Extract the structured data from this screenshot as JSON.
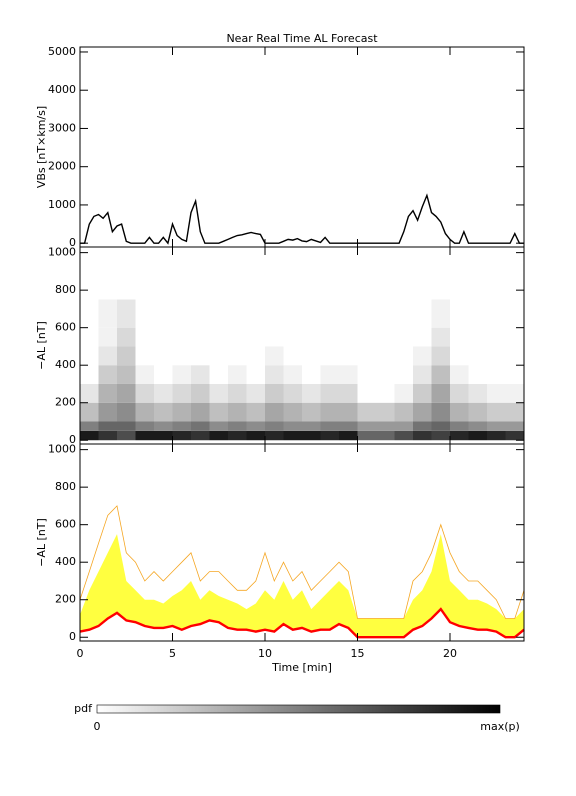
{
  "chart_data": [
    {
      "type": "line",
      "title": "Near Real Time AL Forecast",
      "ylabel": "VBs [nT×km/s]",
      "xlim": [
        0,
        24
      ],
      "ylim": [
        -100,
        5130
      ],
      "yticks": [
        0,
        1000,
        2000,
        3000,
        4000,
        5000
      ],
      "x": [
        0,
        0.25,
        0.5,
        0.75,
        1,
        1.25,
        1.5,
        1.75,
        2,
        2.25,
        2.5,
        2.75,
        3,
        3.25,
        3.5,
        3.75,
        4,
        4.25,
        4.5,
        4.75,
        5,
        5.25,
        5.5,
        5.75,
        6,
        6.25,
        6.5,
        6.75,
        7,
        7.25,
        7.5,
        7.75,
        8,
        8.25,
        8.5,
        8.75,
        9,
        9.25,
        9.5,
        9.75,
        10,
        10.25,
        10.5,
        10.75,
        11,
        11.25,
        11.5,
        11.75,
        12,
        12.25,
        12.5,
        12.75,
        13,
        13.25,
        13.5,
        13.75,
        14,
        14.25,
        14.5,
        14.75,
        15,
        15.25,
        15.5,
        15.75,
        16,
        16.25,
        16.5,
        16.75,
        17,
        17.25,
        17.5,
        17.75,
        18,
        18.25,
        18.5,
        18.75,
        19,
        19.25,
        19.5,
        19.75,
        20,
        20.25,
        20.5,
        20.75,
        21,
        21.25,
        21.5,
        21.75,
        22,
        22.25,
        22.5,
        22.75,
        23,
        23.25,
        23.5,
        23.75,
        24
      ],
      "series": [
        {
          "color": "#000000",
          "values": [
            0,
            0,
            500,
            700,
            750,
            650,
            800,
            300,
            450,
            500,
            50,
            0,
            0,
            0,
            0,
            150,
            0,
            0,
            150,
            0,
            500,
            200,
            100,
            50,
            800,
            1100,
            300,
            0,
            0,
            0,
            0,
            50,
            100,
            150,
            200,
            220,
            250,
            280,
            250,
            230,
            0,
            0,
            0,
            0,
            50,
            100,
            80,
            120,
            60,
            40,
            100,
            60,
            20,
            150,
            0,
            0,
            0,
            0,
            0,
            0,
            0,
            0,
            0,
            0,
            0,
            0,
            0,
            0,
            0,
            0,
            300,
            700,
            850,
            600,
            950,
            1250,
            800,
            700,
            550,
            250,
            100,
            0,
            0,
            300,
            0,
            0,
            0,
            0,
            0,
            0,
            0,
            0,
            0,
            0,
            250,
            0,
            0
          ]
        }
      ]
    },
    {
      "type": "heatmap",
      "ylabel": "−AL [nT]",
      "xlim": [
        0,
        24
      ],
      "ylim": [
        -20,
        1030
      ],
      "yticks": [
        0,
        200,
        400,
        600,
        800,
        1000
      ],
      "colormap": [
        "#ffffff",
        "#000000"
      ],
      "x_bins": [
        0,
        1,
        2,
        3,
        4,
        5,
        6,
        7,
        8,
        9,
        10,
        11,
        12,
        13,
        14,
        15,
        16,
        17,
        18,
        19,
        20,
        21,
        22,
        23,
        24
      ],
      "y_bins": [
        0,
        50,
        100,
        200,
        300,
        400,
        500,
        600,
        750
      ],
      "z": [
        [
          0.9,
          0.8,
          0.7,
          0.9,
          0.9,
          0.85,
          0.8,
          0.9,
          0.85,
          0.9,
          0.85,
          0.9,
          0.9,
          0.85,
          0.9,
          0.6,
          0.6,
          0.7,
          0.8,
          0.75,
          0.85,
          0.9,
          0.85,
          0.8
        ],
        [
          0.5,
          0.6,
          0.6,
          0.5,
          0.45,
          0.5,
          0.55,
          0.45,
          0.5,
          0.45,
          0.5,
          0.45,
          0.45,
          0.5,
          0.5,
          0.4,
          0.4,
          0.4,
          0.55,
          0.6,
          0.5,
          0.45,
          0.4,
          0.4
        ],
        [
          0.25,
          0.4,
          0.45,
          0.3,
          0.25,
          0.3,
          0.35,
          0.25,
          0.3,
          0.25,
          0.35,
          0.3,
          0.25,
          0.3,
          0.3,
          0.2,
          0.2,
          0.25,
          0.35,
          0.45,
          0.3,
          0.25,
          0.2,
          0.2
        ],
        [
          0.1,
          0.3,
          0.35,
          0.15,
          0.1,
          0.15,
          0.2,
          0.1,
          0.15,
          0.1,
          0.2,
          0.15,
          0.1,
          0.15,
          0.15,
          0,
          0,
          0.05,
          0.2,
          0.35,
          0.15,
          0.1,
          0.05,
          0.05
        ],
        [
          0,
          0.2,
          0.25,
          0.05,
          0,
          0.05,
          0.1,
          0,
          0.05,
          0,
          0.1,
          0.05,
          0,
          0.05,
          0.05,
          0,
          0,
          0,
          0.1,
          0.25,
          0.05,
          0,
          0,
          0
        ],
        [
          0,
          0.1,
          0.2,
          0,
          0,
          0,
          0,
          0,
          0,
          0,
          0.05,
          0,
          0,
          0,
          0,
          0,
          0,
          0,
          0.05,
          0.15,
          0,
          0,
          0,
          0
        ],
        [
          0,
          0.05,
          0.15,
          0,
          0,
          0,
          0,
          0,
          0,
          0,
          0,
          0,
          0,
          0,
          0,
          0,
          0,
          0,
          0,
          0.1,
          0,
          0,
          0,
          0
        ],
        [
          0,
          0.05,
          0.1,
          0,
          0,
          0,
          0,
          0,
          0,
          0,
          0,
          0,
          0,
          0,
          0,
          0,
          0,
          0,
          0,
          0.05,
          0,
          0,
          0,
          0
        ]
      ]
    },
    {
      "type": "band",
      "ylabel": "−AL [nT]",
      "xlabel": "Time [min]",
      "xlim": [
        0,
        24
      ],
      "xticks": [
        0,
        5,
        10,
        15,
        20
      ],
      "ylim": [
        -20,
        1030
      ],
      "yticks": [
        0,
        200,
        400,
        600,
        800,
        1000
      ],
      "x": [
        0,
        0.5,
        1,
        1.5,
        2,
        2.5,
        3,
        3.5,
        4,
        4.5,
        5,
        5.5,
        6,
        6.5,
        7,
        7.5,
        8,
        8.5,
        9,
        9.5,
        10,
        10.5,
        11,
        11.5,
        12,
        12.5,
        13,
        13.5,
        14,
        14.5,
        15,
        15.5,
        16,
        16.5,
        17,
        17.5,
        18,
        18.5,
        19,
        19.5,
        20,
        20.5,
        21,
        21.5,
        22,
        22.5,
        23,
        23.5,
        24
      ],
      "series": [
        {
          "color": "#ff0000",
          "values": [
            30,
            40,
            60,
            100,
            130,
            90,
            80,
            60,
            50,
            50,
            60,
            40,
            60,
            70,
            90,
            80,
            50,
            40,
            40,
            30,
            40,
            30,
            70,
            40,
            50,
            30,
            40,
            40,
            70,
            50,
            0,
            0,
            0,
            0,
            0,
            0,
            40,
            60,
            100,
            150,
            80,
            60,
            50,
            40,
            40,
            30,
            0,
            0,
            40
          ]
        },
        {
          "color": "#ffff40",
          "fill": true,
          "values": [
            120,
            250,
            350,
            450,
            550,
            300,
            250,
            200,
            200,
            180,
            220,
            250,
            300,
            200,
            250,
            220,
            200,
            180,
            150,
            180,
            250,
            200,
            300,
            200,
            250,
            150,
            200,
            250,
            300,
            250,
            100,
            100,
            100,
            100,
            100,
            100,
            200,
            250,
            350,
            550,
            300,
            250,
            200,
            200,
            180,
            150,
            100,
            100,
            150
          ]
        },
        {
          "color": "#f5a623",
          "values": [
            200,
            350,
            500,
            650,
            700,
            450,
            400,
            300,
            350,
            300,
            350,
            400,
            450,
            300,
            350,
            350,
            300,
            250,
            250,
            300,
            450,
            300,
            400,
            300,
            350,
            250,
            300,
            350,
            400,
            350,
            100,
            100,
            100,
            100,
            100,
            100,
            300,
            350,
            450,
            600,
            450,
            350,
            300,
            300,
            250,
            200,
            100,
            100,
            250
          ]
        }
      ]
    }
  ],
  "colorbar": {
    "label": "pdf",
    "tick_labels": [
      "0",
      "max(p)"
    ]
  }
}
